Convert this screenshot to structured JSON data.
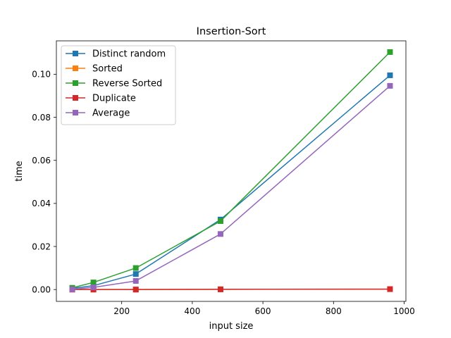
{
  "chart_data": {
    "type": "line",
    "title": "Insertion-Sort",
    "xlabel": "input size",
    "ylabel": "time",
    "xlim": [
      15,
      1005
    ],
    "ylim": [
      -0.0055,
      0.1155
    ],
    "xticks": [
      200,
      400,
      600,
      800,
      1000
    ],
    "xtick_labels": [
      "200",
      "400",
      "600",
      "800",
      "1000"
    ],
    "yticks": [
      0.0,
      0.02,
      0.04,
      0.06,
      0.08,
      0.1
    ],
    "ytick_labels": [
      "0.00",
      "0.02",
      "0.04",
      "0.06",
      "0.08",
      "0.10"
    ],
    "grid": false,
    "legend_position": "top-left",
    "marker": "square",
    "x": [
      60,
      120,
      240,
      480,
      960
    ],
    "series": [
      {
        "name": "Distinct random",
        "color": "#1f77b4",
        "values": [
          0.0005,
          0.0018,
          0.0072,
          0.0325,
          0.0995
        ]
      },
      {
        "name": "Sorted",
        "color": "#ff7f0e",
        "values": [
          0.0,
          0.0,
          0.0,
          0.0001,
          0.0002
        ]
      },
      {
        "name": "Reverse Sorted",
        "color": "#2ca02c",
        "values": [
          0.0008,
          0.0033,
          0.01,
          0.0318,
          0.1103
        ]
      },
      {
        "name": "Duplicate",
        "color": "#d62728",
        "values": [
          0.0,
          0.0,
          0.0,
          0.0001,
          0.0002
        ]
      },
      {
        "name": "Average",
        "color": "#9467bd",
        "values": [
          0.0001,
          0.001,
          0.004,
          0.0258,
          0.0946
        ]
      }
    ]
  }
}
